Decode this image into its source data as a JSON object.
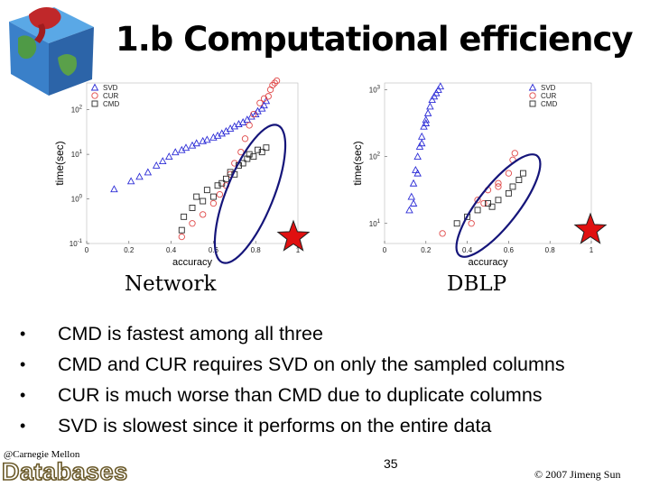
{
  "slide": {
    "title": "1.b Computational efficiency",
    "page_number": "35",
    "copyright": "© 2007 Jimeng Sun",
    "logo_small": "@Carnegie Mellon",
    "logo_big": "Databases",
    "captions": [
      "Network",
      "DBLP"
    ],
    "bullets": [
      "CMD is fastest among all three",
      "CMD and CUR requires SVD on only the sampled columns",
      "CUR is much worse than CMD due to duplicate columns",
      "SVD is slowest since it performs on the entire data"
    ],
    "colors": {
      "svd": "#2b2bd6",
      "cur": "#e04848",
      "cmd": "#2a2a2a",
      "ellipse": "#15157a",
      "star": "#e01010",
      "star_stroke": "#222222"
    }
  },
  "chart_data": [
    {
      "type": "scatter",
      "xlabel": "accuracy",
      "ylabel": "time(sec)",
      "xlim": [
        0,
        1
      ],
      "ylim_log10": [
        -1,
        2.6
      ],
      "x_ticks": [
        "0",
        "0.2",
        "0.4",
        "0.6",
        "0.8",
        "1"
      ],
      "y_ticks": [
        {
          "base": "10",
          "exp": "-1"
        },
        {
          "base": "10",
          "exp": "0"
        },
        {
          "base": "10",
          "exp": "1"
        },
        {
          "base": "10",
          "exp": "2"
        }
      ],
      "legend": [
        "SVD",
        "CUR",
        "CMD"
      ],
      "legend_position": "top-left",
      "series": [
        {
          "name": "SVD",
          "marker": "triangle",
          "points": [
            [
              0.13,
              0.22
            ],
            [
              0.21,
              0.4
            ],
            [
              0.25,
              0.5
            ],
            [
              0.29,
              0.6
            ],
            [
              0.33,
              0.75
            ],
            [
              0.36,
              0.85
            ],
            [
              0.39,
              0.95
            ],
            [
              0.42,
              1.05
            ],
            [
              0.45,
              1.1
            ],
            [
              0.47,
              1.15
            ],
            [
              0.5,
              1.2
            ],
            [
              0.52,
              1.25
            ],
            [
              0.55,
              1.3
            ],
            [
              0.57,
              1.33
            ],
            [
              0.6,
              1.38
            ],
            [
              0.62,
              1.42
            ],
            [
              0.64,
              1.47
            ],
            [
              0.66,
              1.52
            ],
            [
              0.68,
              1.58
            ],
            [
              0.7,
              1.63
            ],
            [
              0.72,
              1.68
            ],
            [
              0.74,
              1.72
            ],
            [
              0.76,
              1.78
            ],
            [
              0.78,
              1.85
            ],
            [
              0.8,
              1.9
            ],
            [
              0.81,
              1.97
            ],
            [
              0.83,
              2.03
            ],
            [
              0.84,
              2.1
            ],
            [
              0.85,
              2.2
            ]
          ]
        },
        {
          "name": "CUR",
          "marker": "circle",
          "points": [
            [
              0.45,
              -0.85
            ],
            [
              0.5,
              -0.55
            ],
            [
              0.55,
              -0.35
            ],
            [
              0.6,
              -0.1
            ],
            [
              0.63,
              0.1
            ],
            [
              0.66,
              0.3
            ],
            [
              0.68,
              0.55
            ],
            [
              0.7,
              0.8
            ],
            [
              0.73,
              1.05
            ],
            [
              0.75,
              1.35
            ],
            [
              0.77,
              1.65
            ],
            [
              0.79,
              1.9
            ],
            [
              0.82,
              2.15
            ],
            [
              0.84,
              2.25
            ],
            [
              0.86,
              2.3
            ],
            [
              0.87,
              2.45
            ],
            [
              0.88,
              2.55
            ],
            [
              0.89,
              2.6
            ],
            [
              0.9,
              2.65
            ]
          ]
        },
        {
          "name": "CMD",
          "marker": "square",
          "points": [
            [
              0.45,
              -0.7
            ],
            [
              0.46,
              -0.4
            ],
            [
              0.5,
              -0.2
            ],
            [
              0.52,
              0.05
            ],
            [
              0.55,
              -0.05
            ],
            [
              0.57,
              0.2
            ],
            [
              0.6,
              0.05
            ],
            [
              0.62,
              0.3
            ],
            [
              0.64,
              0.35
            ],
            [
              0.66,
              0.45
            ],
            [
              0.68,
              0.6
            ],
            [
              0.7,
              0.55
            ],
            [
              0.72,
              0.75
            ],
            [
              0.74,
              0.8
            ],
            [
              0.76,
              0.9
            ],
            [
              0.77,
              1.0
            ],
            [
              0.79,
              0.95
            ],
            [
              0.81,
              1.1
            ],
            [
              0.83,
              1.05
            ],
            [
              0.85,
              1.15
            ]
          ]
        }
      ]
    },
    {
      "type": "scatter",
      "xlabel": "accuracy",
      "ylabel": "time(sec)",
      "xlim": [
        0,
        1
      ],
      "ylim_log10": [
        0.7,
        3.1
      ],
      "x_ticks": [
        "0",
        "0.2",
        "0.4",
        "0.6",
        "0.8",
        "1"
      ],
      "y_ticks": [
        {
          "base": "10",
          "exp": "1"
        },
        {
          "base": "10",
          "exp": "2"
        },
        {
          "base": "10",
          "exp": "3"
        }
      ],
      "legend": [
        "SVD",
        "CUR",
        "CMD"
      ],
      "legend_position": "top-right",
      "series": [
        {
          "name": "SVD",
          "marker": "triangle",
          "points": [
            [
              0.12,
              1.2
            ],
            [
              0.13,
              1.4
            ],
            [
              0.14,
              1.6
            ],
            [
              0.15,
              1.8
            ],
            [
              0.16,
              2.0
            ],
            [
              0.17,
              2.15
            ],
            [
              0.18,
              2.3
            ],
            [
              0.19,
              2.45
            ],
            [
              0.2,
              2.55
            ],
            [
              0.21,
              2.65
            ],
            [
              0.22,
              2.75
            ],
            [
              0.23,
              2.85
            ],
            [
              0.24,
              2.9
            ],
            [
              0.25,
              2.95
            ],
            [
              0.26,
              3.0
            ],
            [
              0.27,
              3.05
            ],
            [
              0.14,
              1.3
            ],
            [
              0.16,
              1.75
            ],
            [
              0.18,
              2.2
            ],
            [
              0.2,
              2.5
            ]
          ]
        },
        {
          "name": "CUR",
          "marker": "circle",
          "points": [
            [
              0.28,
              0.85
            ],
            [
              0.42,
              1.0
            ],
            [
              0.45,
              1.35
            ],
            [
              0.5,
              1.5
            ],
            [
              0.55,
              1.6
            ],
            [
              0.6,
              1.75
            ],
            [
              0.62,
              1.95
            ],
            [
              0.63,
              2.05
            ],
            [
              0.55,
              1.55
            ],
            [
              0.48,
              1.3
            ]
          ]
        },
        {
          "name": "CMD",
          "marker": "square",
          "points": [
            [
              0.35,
              1.0
            ],
            [
              0.4,
              1.1
            ],
            [
              0.45,
              1.2
            ],
            [
              0.5,
              1.3
            ],
            [
              0.55,
              1.35
            ],
            [
              0.6,
              1.45
            ],
            [
              0.62,
              1.55
            ],
            [
              0.65,
              1.65
            ],
            [
              0.67,
              1.75
            ],
            [
              0.52,
              1.25
            ]
          ]
        }
      ]
    }
  ]
}
